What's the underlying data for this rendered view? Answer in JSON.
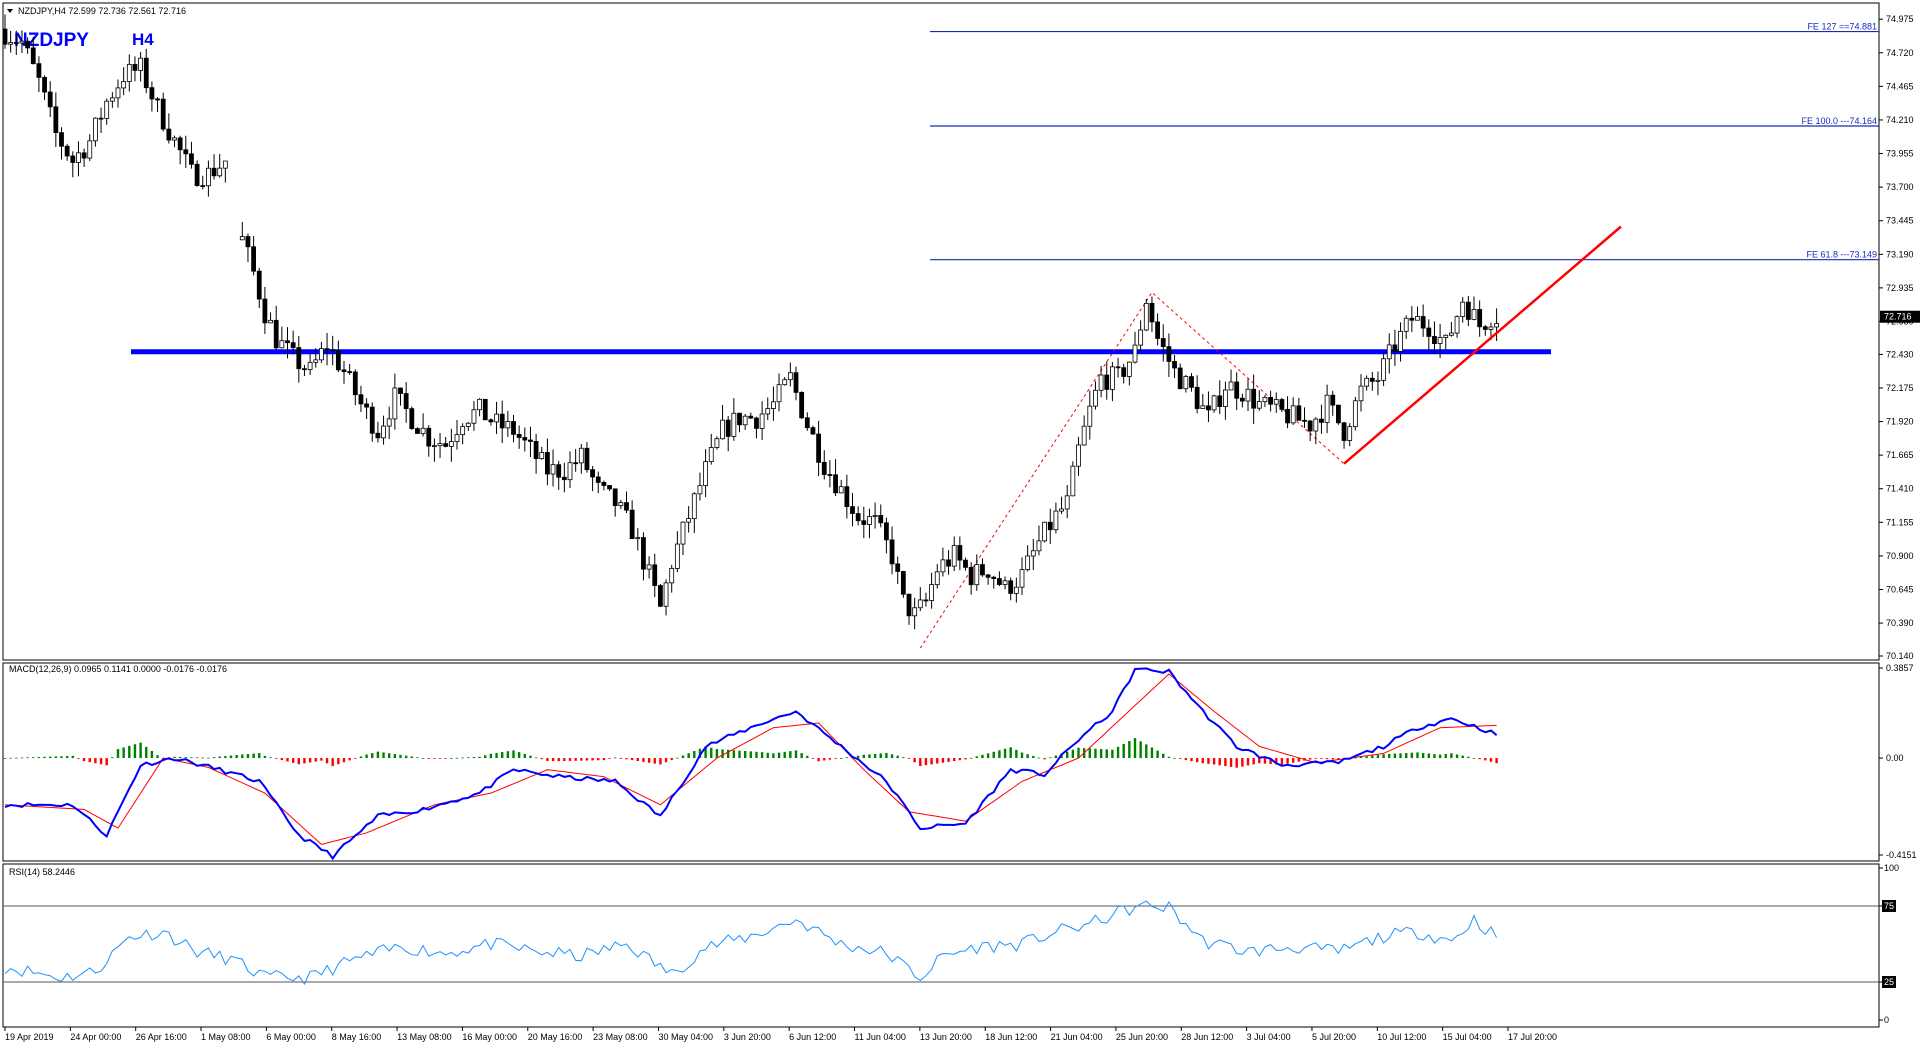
{
  "window": {
    "header": "NZDJPY,H4  72.599 72.736 72.561 72.716",
    "symbol": "NZDJPY",
    "timeframe": "H4"
  },
  "colors": {
    "background": "#ffffff",
    "candle": "#000000",
    "support_line": "#0000ff",
    "trendline": "#ff0000",
    "fib_line": "#1a2ab8",
    "macd_main": "#0000ff",
    "macd_signal": "#ff0000",
    "hist_up": "#008000",
    "hist_down": "#ff0000",
    "rsi_line": "#1e90ff",
    "price_tag_bg": "#000000"
  },
  "chart_data": [
    {
      "type": "candlestick",
      "panel": "price",
      "ylim": [
        70.14,
        75.06
      ],
      "y_ticks": [
        "74.975",
        "74.720",
        "74.465",
        "74.210",
        "73.955",
        "73.700",
        "73.445",
        "73.190",
        "72.935",
        "72.680",
        "72.430",
        "72.175",
        "71.920",
        "71.665",
        "71.410",
        "71.155",
        "70.900",
        "70.645",
        "70.390",
        "70.140"
      ],
      "current_price": "72.716",
      "x_labels": [
        "19 Apr 2019",
        "24 Apr 00:00",
        "26 Apr 16:00",
        "1 May 08:00",
        "6 May 00:00",
        "8 May 16:00",
        "13 May 08:00",
        "16 May 00:00",
        "20 May 16:00",
        "23 May 08:00",
        "30 May 04:00",
        "3 Jun 20:00",
        "6 Jun 12:00",
        "11 Jun 04:00",
        "13 Jun 20:00",
        "18 Jun 12:00",
        "21 Jun 04:00",
        "25 Jun 20:00",
        "28 Jun 12:00",
        "3 Jul 04:00",
        "5 Jul 20:00",
        "10 Jul 12:00",
        "15 Jul 04:00",
        "17 Jul 20:00"
      ],
      "price_path": [
        [
          0,
          74.9
        ],
        [
          4,
          74.8
        ],
        [
          7,
          74.5
        ],
        [
          10,
          74.1
        ],
        [
          13,
          73.9
        ],
        [
          16,
          74.05
        ],
        [
          19,
          74.35
        ],
        [
          22,
          74.55
        ],
        [
          25,
          74.6
        ],
        [
          28,
          74.3
        ],
        [
          31,
          74.05
        ],
        [
          34,
          73.8
        ],
        [
          37,
          73.8
        ],
        [
          40,
          73.9
        ],
        [
          43,
          73.3
        ],
        [
          45,
          73.05
        ],
        [
          47,
          72.75
        ],
        [
          49,
          72.55
        ],
        [
          52,
          72.4
        ],
        [
          55,
          72.3
        ],
        [
          58,
          72.5
        ],
        [
          61,
          72.3
        ],
        [
          64,
          72.05
        ],
        [
          67,
          71.85
        ],
        [
          70,
          72.1
        ],
        [
          73,
          71.95
        ],
        [
          76,
          71.8
        ],
        [
          79,
          71.75
        ],
        [
          82,
          71.95
        ],
        [
          85,
          72.0
        ],
        [
          88,
          71.9
        ],
        [
          91,
          71.85
        ],
        [
          94,
          71.7
        ],
        [
          97,
          71.55
        ],
        [
          100,
          71.55
        ],
        [
          103,
          71.65
        ],
        [
          106,
          71.4
        ],
        [
          109,
          71.3
        ],
        [
          112,
          71.1
        ],
        [
          115,
          70.75
        ],
        [
          117,
          70.5
        ],
        [
          119,
          70.85
        ],
        [
          122,
          71.2
        ],
        [
          125,
          71.55
        ],
        [
          128,
          71.85
        ],
        [
          131,
          71.95
        ],
        [
          134,
          71.95
        ],
        [
          137,
          72.05
        ],
        [
          140,
          72.25
        ],
        [
          143,
          71.9
        ],
        [
          146,
          71.6
        ],
        [
          149,
          71.4
        ],
        [
          152,
          71.2
        ],
        [
          155,
          71.15
        ],
        [
          158,
          70.9
        ],
        [
          160,
          70.55
        ],
        [
          162,
          70.45
        ],
        [
          164,
          70.55
        ],
        [
          166,
          70.8
        ],
        [
          169,
          70.9
        ],
        [
          172,
          70.75
        ],
        [
          175,
          70.8
        ],
        [
          178,
          70.65
        ],
        [
          181,
          70.75
        ],
        [
          184,
          71.0
        ],
        [
          187,
          71.2
        ],
        [
          189,
          71.3
        ],
        [
          191,
          71.7
        ],
        [
          193,
          72.0
        ],
        [
          195,
          72.25
        ],
        [
          198,
          72.25
        ],
        [
          201,
          72.45
        ],
        [
          203,
          72.85
        ],
        [
          205,
          72.55
        ],
        [
          208,
          72.3
        ],
        [
          211,
          72.15
        ],
        [
          214,
          71.95
        ],
        [
          217,
          72.2
        ],
        [
          220,
          72.15
        ],
        [
          223,
          72.05
        ],
        [
          226,
          72.0
        ],
        [
          229,
          71.95
        ],
        [
          232,
          71.9
        ],
        [
          235,
          72.05
        ],
        [
          238,
          71.85
        ],
        [
          241,
          72.15
        ],
        [
          244,
          72.25
        ],
        [
          247,
          72.5
        ],
        [
          250,
          72.7
        ],
        [
          253,
          72.65
        ],
        [
          256,
          72.5
        ],
        [
          259,
          72.85
        ],
        [
          262,
          72.65
        ],
        [
          264,
          72.72
        ]
      ],
      "n_bars": 265,
      "support_level": 72.45,
      "fib_levels": [
        {
          "label": "FE 127 ==74.881",
          "value": 74.881
        },
        {
          "label": "FE 100.0 ---74.164",
          "value": 74.164
        },
        {
          "label": "FE 61.8 ---73.149",
          "value": 73.149
        }
      ],
      "fib_triangle": [
        [
          162,
          70.2
        ],
        [
          203,
          72.9
        ],
        [
          237,
          71.6
        ]
      ],
      "trendline": [
        [
          237,
          71.6
        ],
        [
          286,
          73.4
        ]
      ]
    },
    {
      "type": "histogram+line",
      "panel": "macd",
      "label": "MACD(12,26,9) 0.0965 0.1141 0.0000 -0.0176 -0.0176",
      "y_ticks": [
        "0.3857",
        "0.00",
        "-0.4151"
      ],
      "ylim": [
        -0.4151,
        0.3857
      ],
      "main_path": [
        [
          0,
          -0.2
        ],
        [
          12,
          -0.2
        ],
        [
          18,
          -0.33
        ],
        [
          24,
          -0.03
        ],
        [
          30,
          0.0
        ],
        [
          38,
          -0.05
        ],
        [
          45,
          -0.1
        ],
        [
          52,
          -0.33
        ],
        [
          58,
          -0.42
        ],
        [
          66,
          -0.25
        ],
        [
          74,
          -0.22
        ],
        [
          84,
          -0.15
        ],
        [
          90,
          -0.05
        ],
        [
          98,
          -0.08
        ],
        [
          108,
          -0.1
        ],
        [
          116,
          -0.25
        ],
        [
          124,
          0.05
        ],
        [
          134,
          0.15
        ],
        [
          140,
          0.2
        ],
        [
          148,
          0.05
        ],
        [
          156,
          -0.1
        ],
        [
          162,
          -0.3
        ],
        [
          170,
          -0.28
        ],
        [
          178,
          -0.05
        ],
        [
          184,
          -0.07
        ],
        [
          190,
          0.08
        ],
        [
          196,
          0.2
        ],
        [
          200,
          0.38
        ],
        [
          206,
          0.37
        ],
        [
          212,
          0.2
        ],
        [
          218,
          0.05
        ],
        [
          226,
          -0.03
        ],
        [
          236,
          -0.02
        ],
        [
          244,
          0.05
        ],
        [
          250,
          0.13
        ],
        [
          256,
          0.17
        ],
        [
          262,
          0.12
        ],
        [
          264,
          0.1
        ]
      ],
      "signal_path": [
        [
          0,
          -0.2
        ],
        [
          14,
          -0.22
        ],
        [
          20,
          -0.3
        ],
        [
          28,
          0.0
        ],
        [
          36,
          -0.04
        ],
        [
          46,
          -0.15
        ],
        [
          56,
          -0.37
        ],
        [
          64,
          -0.32
        ],
        [
          76,
          -0.2
        ],
        [
          86,
          -0.15
        ],
        [
          96,
          -0.05
        ],
        [
          106,
          -0.08
        ],
        [
          116,
          -0.2
        ],
        [
          126,
          0.0
        ],
        [
          136,
          0.13
        ],
        [
          144,
          0.15
        ],
        [
          152,
          -0.05
        ],
        [
          160,
          -0.23
        ],
        [
          170,
          -0.27
        ],
        [
          180,
          -0.1
        ],
        [
          190,
          0.0
        ],
        [
          198,
          0.18
        ],
        [
          206,
          0.36
        ],
        [
          214,
          0.2
        ],
        [
          222,
          0.05
        ],
        [
          232,
          -0.02
        ],
        [
          244,
          0.02
        ],
        [
          254,
          0.13
        ],
        [
          264,
          0.14
        ]
      ]
    },
    {
      "type": "line",
      "panel": "rsi",
      "label": "RSI(14) 58.2446",
      "ylim": [
        0,
        100
      ],
      "y_ticks": [
        "100",
        "75",
        "25",
        "0"
      ],
      "rsi_levels": [
        75,
        25
      ],
      "rsi_path": [
        [
          0,
          35
        ],
        [
          10,
          28
        ],
        [
          16,
          32
        ],
        [
          22,
          55
        ],
        [
          28,
          58
        ],
        [
          34,
          45
        ],
        [
          40,
          40
        ],
        [
          46,
          28
        ],
        [
          54,
          28
        ],
        [
          62,
          40
        ],
        [
          70,
          48
        ],
        [
          78,
          44
        ],
        [
          86,
          50
        ],
        [
          94,
          45
        ],
        [
          102,
          42
        ],
        [
          110,
          50
        ],
        [
          118,
          30
        ],
        [
          124,
          48
        ],
        [
          132,
          55
        ],
        [
          140,
          66
        ],
        [
          148,
          50
        ],
        [
          156,
          44
        ],
        [
          162,
          28
        ],
        [
          166,
          42
        ],
        [
          172,
          48
        ],
        [
          180,
          50
        ],
        [
          186,
          58
        ],
        [
          192,
          63
        ],
        [
          198,
          72
        ],
        [
          202,
          75
        ],
        [
          206,
          74
        ],
        [
          212,
          52
        ],
        [
          220,
          45
        ],
        [
          228,
          48
        ],
        [
          236,
          45
        ],
        [
          244,
          55
        ],
        [
          250,
          58
        ],
        [
          256,
          52
        ],
        [
          260,
          66
        ],
        [
          264,
          55
        ]
      ]
    }
  ]
}
